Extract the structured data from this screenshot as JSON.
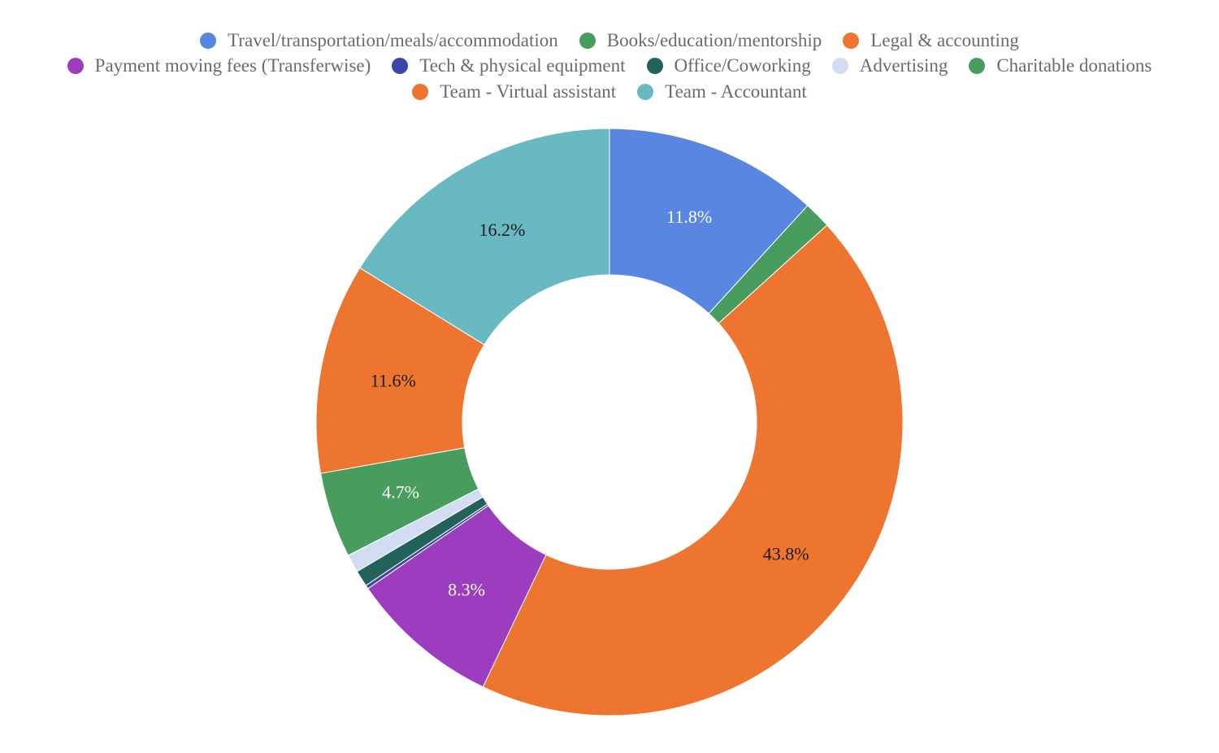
{
  "chart_data": {
    "type": "pie",
    "title": "",
    "donut": true,
    "legend_position": "top",
    "slices": [
      {
        "label": "Travel/transportation/meals/accommodation",
        "value": 11.8,
        "color": "#5886e0",
        "data_label": "11.8%",
        "label_color": "#ffffff"
      },
      {
        "label": "Books/education/mentorship",
        "value": 1.5,
        "color": "#489d5e",
        "data_label": "",
        "label_color": "#ffffff"
      },
      {
        "label": "Legal & accounting",
        "value": 43.8,
        "color": "#ee7530",
        "data_label": "43.8%",
        "label_color": "#1a1a1a"
      },
      {
        "label": "Payment moving fees (Transferwise)",
        "value": 8.3,
        "color": "#9b3dbe",
        "data_label": "8.3%",
        "label_color": "#ffffff"
      },
      {
        "label": "Tech & physical equipment",
        "value": 0.2,
        "color": "#3a47a8",
        "data_label": "",
        "label_color": "#ffffff"
      },
      {
        "label": "Office/Coworking",
        "value": 0.9,
        "color": "#23625a",
        "data_label": "",
        "label_color": "#ffffff"
      },
      {
        "label": "Advertising",
        "value": 1.0,
        "color": "#d2ddf4",
        "data_label": "",
        "label_color": "#1a1a1a"
      },
      {
        "label": "Charitable donations",
        "value": 4.7,
        "color": "#489d5e",
        "data_label": "4.7%",
        "label_color": "#ffffff"
      },
      {
        "label": "Team - Virtual assistant",
        "value": 11.6,
        "color": "#ee7530",
        "data_label": "11.6%",
        "label_color": "#1a1a1a"
      },
      {
        "label": "Team - Accountant",
        "value": 16.2,
        "color": "#69b9c3",
        "data_label": "16.2%",
        "label_color": "#1a1a1a"
      }
    ],
    "legend_rows": [
      [
        0,
        1,
        2
      ],
      [
        3,
        4,
        5,
        6,
        7
      ],
      [
        8,
        9
      ]
    ]
  }
}
